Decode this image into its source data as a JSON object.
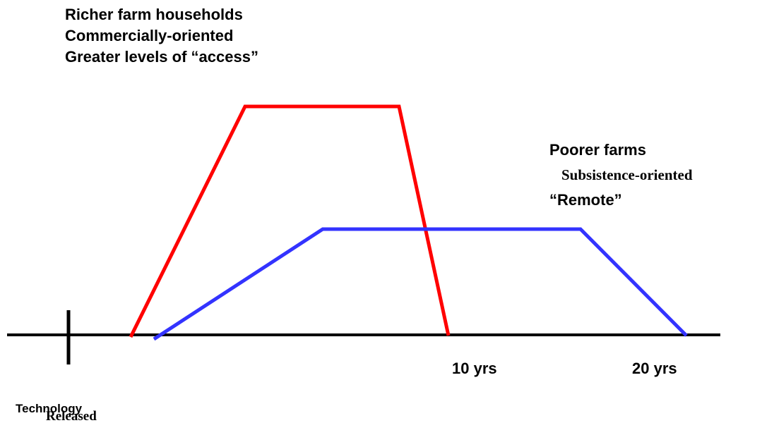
{
  "richer": {
    "lines": [
      "Richer farm households",
      "Commercially-oriented",
      "Greater levels of “access”"
    ]
  },
  "poorer": {
    "title": "Poorer farms",
    "line1": "Subsistence-oriented",
    "line2": "“Remote”"
  },
  "axis": {
    "mark1": "10 yrs",
    "mark2": "20 yrs",
    "start_line1": "Technology",
    "start_line2": "Released"
  }
}
